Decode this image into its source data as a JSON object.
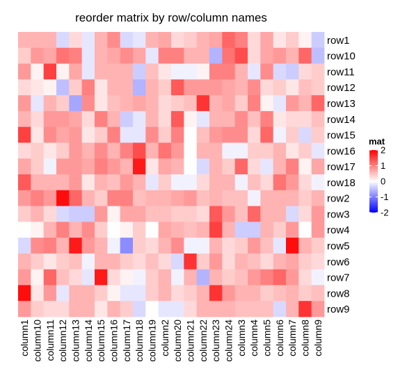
{
  "chart_data": {
    "type": "heatmap",
    "title": "reorder matrix by row/column names",
    "rows": [
      "row1",
      "row10",
      "row11",
      "row12",
      "row13",
      "row14",
      "row15",
      "row16",
      "row17",
      "row18",
      "row2",
      "row3",
      "row4",
      "row5",
      "row6",
      "row7",
      "row8",
      "row9"
    ],
    "columns": [
      "column1",
      "column10",
      "column11",
      "column12",
      "column13",
      "column14",
      "column15",
      "column16",
      "column17",
      "column18",
      "column19",
      "column2",
      "column20",
      "column21",
      "column22",
      "column23",
      "column24",
      "column3",
      "column4",
      "column5",
      "column6",
      "column7",
      "column8",
      "column9"
    ],
    "values": [
      [
        0.6,
        0.6,
        0.6,
        -0.3,
        0.3,
        -0.2,
        0.6,
        0.9,
        -0.3,
        -0.2,
        0.6,
        0.7,
        0.3,
        0.4,
        0.6,
        0.7,
        1.2,
        1.0,
        0.3,
        0.7,
        0.2,
        0.4,
        0.1,
        -0.4
      ],
      [
        0.4,
        0.8,
        0.7,
        1.1,
        1.0,
        -0.2,
        0.6,
        0.7,
        0.9,
        0.7,
        -0.2,
        1.0,
        1.0,
        0.6,
        0.6,
        -0.6,
        1.1,
        1.4,
        0.3,
        0.7,
        0.8,
        0.6,
        1.2,
        -0.5
      ],
      [
        0.8,
        0.1,
        1.5,
        0.1,
        0.7,
        -0.2,
        0.6,
        0.6,
        0.6,
        -0.4,
        0.5,
        0.2,
        -0.1,
        -0.1,
        0.1,
        1.0,
        1.0,
        0.6,
        -0.2,
        0.9,
        -0.3,
        -0.4,
        0.3,
        0.4
      ],
      [
        0.3,
        0.2,
        0.1,
        -0.5,
        0.4,
        1.0,
        0.2,
        0.6,
        0.6,
        -0.6,
        0.6,
        0.4,
        1.3,
        0.8,
        0.8,
        0.8,
        0.7,
        0.6,
        0.9,
        0.3,
        0.4,
        0.2,
        0.5,
        0.4
      ],
      [
        0.8,
        -0.2,
        0.6,
        0.4,
        -0.7,
        0.9,
        0.2,
        0.5,
        0.6,
        0.7,
        0.6,
        0.3,
        0.4,
        0.5,
        1.6,
        0.6,
        0.7,
        0.4,
        1.0,
        0.1,
        -0.2,
        0.8,
        0.6,
        1.2
      ],
      [
        0.6,
        0.3,
        0.8,
        0.8,
        0.7,
        0.3,
        1.0,
        0.6,
        -0.4,
        -0.2,
        0.6,
        0.3,
        1.3,
        0.1,
        -0.2,
        0.6,
        0.6,
        0.9,
        0.5,
        1.0,
        0.2,
        0.3,
        0.3,
        0.5
      ],
      [
        1.5,
        0.2,
        0.9,
        0.7,
        0.8,
        0.2,
        0.4,
        1.0,
        -0.2,
        -0.2,
        0.9,
        0.4,
        1.0,
        0.0,
        0.5,
        0.8,
        0.9,
        0.9,
        0.3,
        1.2,
        -0.1,
        0.4,
        -0.3,
        0.4
      ],
      [
        0.3,
        0.4,
        0.2,
        0.4,
        0.8,
        0.6,
        0.9,
        0.6,
        1.0,
        1.4,
        0.6,
        1.1,
        0.8,
        0.0,
        0.6,
        0.6,
        -0.1,
        -0.1,
        0.4,
        0.4,
        0.6,
        0.2,
        0.4,
        -0.2
      ],
      [
        0.7,
        0.4,
        -0.1,
        0.8,
        0.8,
        0.7,
        1.0,
        0.8,
        0.6,
        1.8,
        0.2,
        0.7,
        0.6,
        0.0,
        -0.3,
        0.6,
        0.4,
        1.2,
        0.3,
        -0.2,
        0.6,
        1.0,
        0.1,
        0.7
      ],
      [
        1.3,
        0.6,
        0.6,
        0.6,
        0.8,
        0.2,
        0.6,
        0.5,
        0.8,
        0.6,
        -0.2,
        0.4,
        -0.1,
        -0.1,
        0.3,
        0.6,
        0.6,
        -0.1,
        0.5,
        0.3,
        1.1,
        0.8,
        0.3,
        -0.1
      ],
      [
        0.8,
        1.0,
        0.8,
        1.9,
        1.2,
        0.6,
        0.4,
        1.0,
        1.0,
        0.5,
        0.6,
        0.6,
        0.7,
        0.8,
        0.5,
        0.6,
        0.5,
        0.5,
        -0.1,
        0.6,
        0.6,
        0.6,
        0.4,
        0.6
      ],
      [
        0.4,
        0.6,
        0.3,
        -0.3,
        -0.4,
        -0.4,
        0.8,
        0.1,
        0.7,
        0.7,
        0.5,
        0.5,
        0.4,
        0.4,
        0.3,
        1.3,
        0.8,
        0.5,
        1.2,
        0.6,
        0.6,
        -0.3,
        0.3,
        0.8
      ],
      [
        0.0,
        0.1,
        0.6,
        1.0,
        0.6,
        0.9,
        0.4,
        0.0,
        0.1,
        0.4,
        0.0,
        0.7,
        0.6,
        0.5,
        0.6,
        1.5,
        0.6,
        -0.4,
        -0.4,
        0.6,
        0.4,
        0.8,
        0.0,
        0.8
      ],
      [
        -0.3,
        0.9,
        1.0,
        0.6,
        1.8,
        0.8,
        0.6,
        -0.1,
        -0.9,
        0.4,
        0.3,
        0.6,
        0.9,
        -0.1,
        -0.1,
        0.6,
        0.3,
        0.4,
        0.8,
        0.5,
        -0.2,
        1.9,
        0.6,
        0.4
      ],
      [
        0.6,
        0.4,
        0.2,
        0.4,
        0.5,
        -0.1,
        0.6,
        0.6,
        0.4,
        0.3,
        0.5,
        0.3,
        -0.3,
        1.6,
        0.4,
        0.8,
        0.3,
        0.6,
        0.5,
        0.3,
        0.6,
        0.7,
        0.4,
        0.3
      ],
      [
        0.8,
        0.1,
        1.2,
        0.5,
        0.3,
        -0.2,
        1.8,
        0.3,
        0.1,
        -0.1,
        0.4,
        0.6,
        -0.1,
        0.6,
        -0.6,
        0.6,
        0.4,
        0.5,
        0.8,
        1.0,
        1.2,
        0.8,
        0.3,
        -0.1
      ],
      [
        1.9,
        0.2,
        0.8,
        -0.2,
        0.6,
        0.6,
        0.4,
        0.1,
        -0.2,
        -0.2,
        0.4,
        0.6,
        0.3,
        0.4,
        0.6,
        1.6,
        0.8,
        0.6,
        0.6,
        0.4,
        0.5,
        0.6,
        0.4,
        0.5
      ],
      [
        0.8,
        0.4,
        0.3,
        0.3,
        0.6,
        0.6,
        0.2,
        0.6,
        0.4,
        -0.3,
        0.0,
        -0.2,
        -0.2,
        0.3,
        0.6,
        0.6,
        0.6,
        0.5,
        0.5,
        0.5,
        -0.3,
        0.6,
        1.6,
        0.8
      ]
    ],
    "colorscale": {
      "min": -2,
      "mid": 0,
      "max": 2,
      "low": "#0000FF",
      "midColor": "#FFFFFF",
      "high": "#FF0000"
    },
    "legend": {
      "title": "mat",
      "ticks": [
        2,
        1,
        0,
        -1,
        -2
      ],
      "placement": "right"
    }
  }
}
